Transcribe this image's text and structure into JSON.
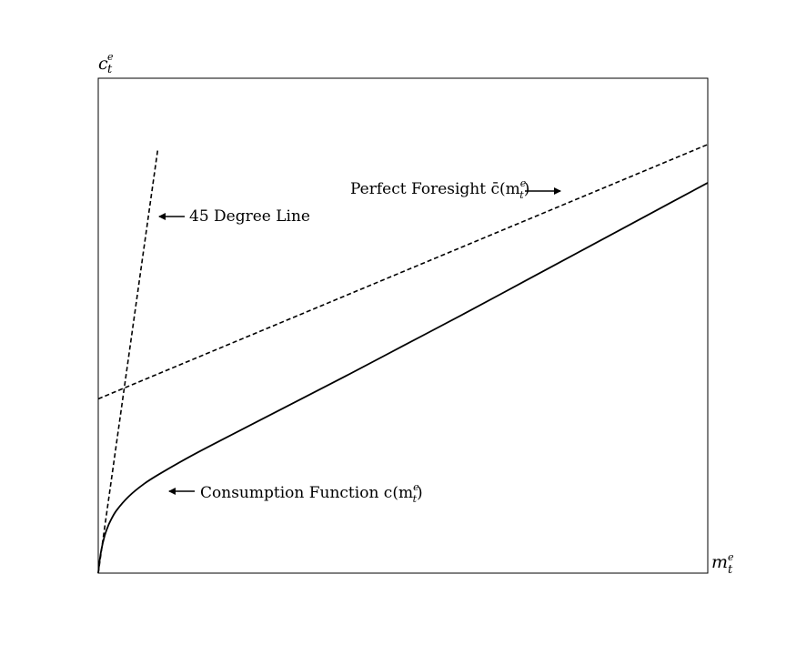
{
  "chart_data": {
    "type": "line",
    "xlabel": {
      "base": "m",
      "sup": "e",
      "sub": "t"
    },
    "ylabel": {
      "base": "c",
      "sup": "e",
      "sub": "t"
    },
    "grid": false,
    "ticks": "none",
    "series": [
      {
        "key": "consumption",
        "style": "solid",
        "x": [
          0,
          0.02,
          0.05,
          0.1,
          0.15,
          0.2,
          0.3,
          0.5,
          0.75,
          1.0,
          1.5,
          2.0,
          3.0,
          4.0,
          5.0,
          6.0,
          7.0,
          8.0,
          9.0,
          10.0
        ],
        "y": [
          0,
          0.16,
          0.33,
          0.52,
          0.65,
          0.75,
          0.9,
          1.1,
          1.28,
          1.42,
          1.67,
          1.9,
          2.35,
          2.8,
          3.26,
          3.72,
          4.19,
          4.66,
          5.13,
          5.6
        ]
      },
      {
        "key": "perfect_foresight",
        "style": "dashed",
        "x": [
          0,
          10.0
        ],
        "y": [
          2.5,
          6.15
        ]
      },
      {
        "key": "forty_five",
        "style": "dashed",
        "x": [
          0,
          0.98
        ],
        "y": [
          0,
          6.1
        ]
      }
    ],
    "xlim": [
      0,
      10
    ],
    "ylim": [
      0,
      7.1
    ],
    "annotations": [
      {
        "key": "consumption",
        "text": "Consumption Function c(m",
        "sup": "e",
        "sub": "t",
        "close": ")"
      },
      {
        "key": "perfect_foresight",
        "text": "Perfect Foresight c̄(m",
        "sup": "e",
        "sub": "t",
        "close": ")"
      },
      {
        "key": "forty_five",
        "text": "45 Degree Line"
      }
    ]
  }
}
